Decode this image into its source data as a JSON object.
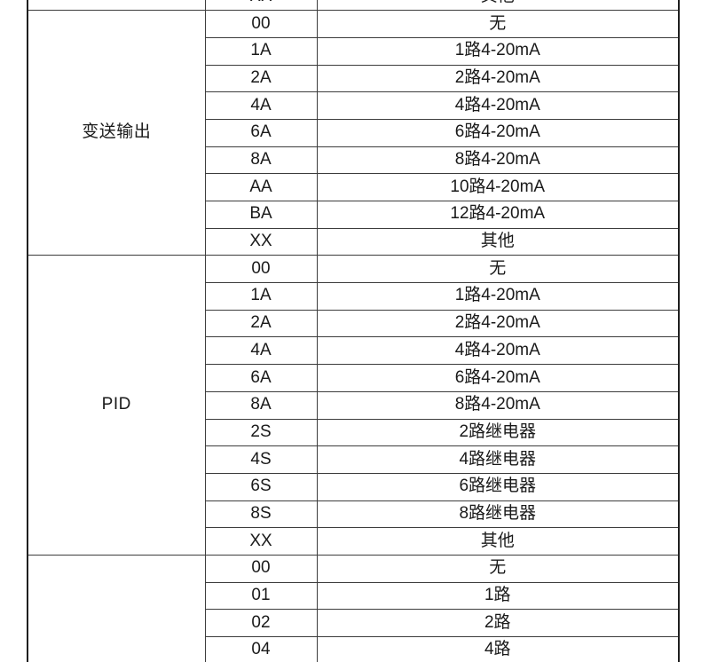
{
  "table": {
    "description": "ordering-code-spec-table",
    "groups": [
      {
        "label": "",
        "rows": [
          {
            "code": "XX",
            "desc": "其他"
          }
        ]
      },
      {
        "label": "变送输出",
        "rows": [
          {
            "code": "00",
            "desc": "无"
          },
          {
            "code": "1A",
            "desc": "1路4-20mA"
          },
          {
            "code": "2A",
            "desc": "2路4-20mA"
          },
          {
            "code": "4A",
            "desc": "4路4-20mA"
          },
          {
            "code": "6A",
            "desc": "6路4-20mA"
          },
          {
            "code": "8A",
            "desc": "8路4-20mA"
          },
          {
            "code": "AA",
            "desc": "10路4-20mA"
          },
          {
            "code": "BA",
            "desc": "12路4-20mA"
          },
          {
            "code": "XX",
            "desc": "其他"
          }
        ]
      },
      {
        "label": "PID",
        "rows": [
          {
            "code": "00",
            "desc": "无"
          },
          {
            "code": "1A",
            "desc": "1路4-20mA"
          },
          {
            "code": "2A",
            "desc": "2路4-20mA"
          },
          {
            "code": "4A",
            "desc": "4路4-20mA"
          },
          {
            "code": "6A",
            "desc": "6路4-20mA"
          },
          {
            "code": "8A",
            "desc": "8路4-20mA"
          },
          {
            "code": "2S",
            "desc": "2路继电器"
          },
          {
            "code": "4S",
            "desc": "4路继电器"
          },
          {
            "code": "6S",
            "desc": "6路继电器"
          },
          {
            "code": "8S",
            "desc": "8路继电器"
          },
          {
            "code": "XX",
            "desc": "其他"
          }
        ]
      },
      {
        "label": "",
        "rows": [
          {
            "code": "00",
            "desc": "无"
          },
          {
            "code": "01",
            "desc": "1路"
          },
          {
            "code": "02",
            "desc": "2路"
          },
          {
            "code": "04",
            "desc": "4路"
          }
        ]
      }
    ]
  },
  "colors": {
    "background": "#ffffff",
    "text": "#1a1a1a",
    "grid_line": "#3c3c3c",
    "outer_border": "#1f1f1f"
  }
}
